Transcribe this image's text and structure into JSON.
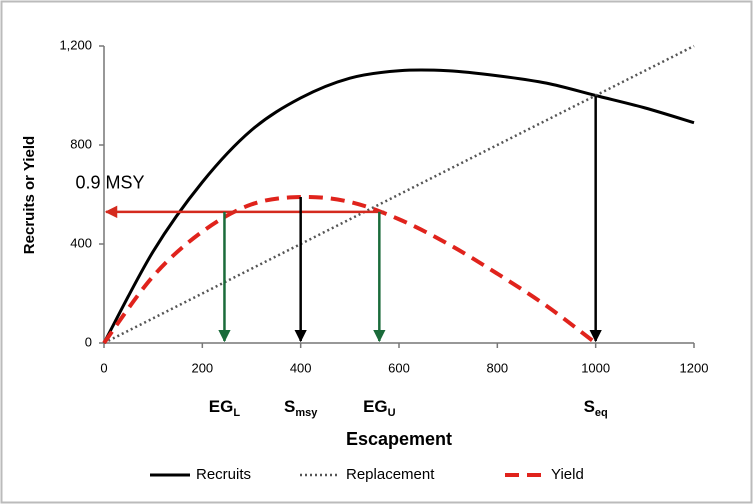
{
  "chart_data": {
    "type": "line",
    "x": [
      0,
      100,
      200,
      300,
      400,
      500,
      600,
      700,
      800,
      900,
      1000,
      1100,
      1200
    ],
    "series": [
      {
        "name": "Recruits",
        "color": "#000000",
        "values": [
          0,
          370,
          650,
          860,
          990,
          1070,
          1100,
          1100,
          1080,
          1050,
          1000,
          950,
          890
        ]
      },
      {
        "name": "Replacement",
        "color": "#555555",
        "values": [
          0,
          100,
          200,
          300,
          400,
          500,
          600,
          700,
          800,
          900,
          1000,
          1100,
          1200
        ]
      },
      {
        "name": "Yield",
        "color": "#e0231c",
        "values": [
          0,
          270,
          450,
          560,
          590,
          570,
          500,
          400,
          280,
          150,
          0,
          null,
          null
        ]
      }
    ],
    "xlim": [
      0,
      1200
    ],
    "xticks": [
      0,
      200,
      400,
      600,
      800,
      1000,
      1200
    ],
    "ylim": [
      0,
      1200
    ],
    "yticks": [
      0,
      400,
      800,
      {
        "value": 1200,
        "label": "1,200"
      }
    ],
    "xlabel": "Escapement",
    "ylabel": "Recruits or Yield",
    "msy_arrow": {
      "label": "0.9 MSY",
      "y": 530,
      "x_from": 570,
      "x_to": 0,
      "color": "#d42a1e"
    },
    "drop_arrows": [
      {
        "text": "EG",
        "sub": "L",
        "x": 245,
        "y": 530,
        "color": "#1a6b3a"
      },
      {
        "text": "S",
        "sub": "msy",
        "x": 400,
        "y": 590,
        "color": "#000000"
      },
      {
        "text": "EG",
        "sub": "U",
        "x": 560,
        "y": 530,
        "color": "#1a6b3a"
      },
      {
        "text": "S",
        "sub": "eq",
        "x": 1000,
        "y": 1000,
        "color": "#000000"
      }
    ]
  }
}
